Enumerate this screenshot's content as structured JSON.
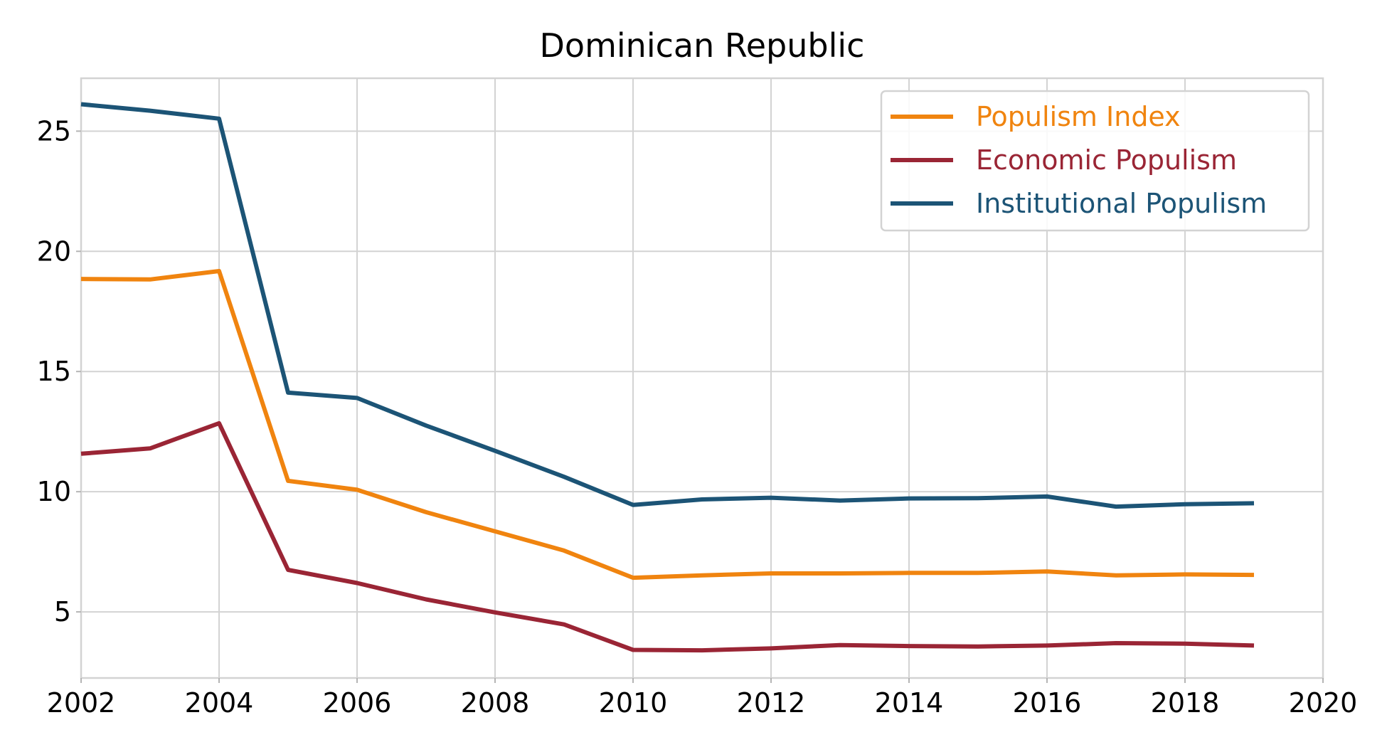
{
  "chart_data": {
    "type": "line",
    "title": "Dominican Republic",
    "xlabel": "",
    "ylabel": "",
    "xlim": [
      2002,
      2020
    ],
    "ylim": [
      2.25,
      27.2
    ],
    "xticks": [
      "2002",
      "2004",
      "2006",
      "2008",
      "2010",
      "2012",
      "2014",
      "2016",
      "2018",
      "2020"
    ],
    "yticks": [
      "5",
      "10",
      "15",
      "20",
      "25"
    ],
    "grid": true,
    "legend_position": "top-right",
    "x": [
      2002,
      2003,
      2004,
      2005,
      2006,
      2007,
      2008,
      2009,
      2010,
      2011,
      2012,
      2013,
      2014,
      2015,
      2016,
      2017,
      2018,
      2019
    ],
    "series": [
      {
        "name": "Populism Index",
        "color": "#f0840f",
        "values": [
          18.85,
          18.83,
          19.18,
          10.45,
          10.08,
          9.15,
          8.35,
          7.55,
          6.42,
          6.52,
          6.6,
          6.6,
          6.62,
          6.62,
          6.68,
          6.52,
          6.56,
          6.54
        ]
      },
      {
        "name": "Economic Populism",
        "color": "#9a2535",
        "values": [
          11.58,
          11.8,
          12.85,
          6.75,
          6.2,
          5.52,
          4.98,
          4.48,
          3.42,
          3.4,
          3.48,
          3.62,
          3.58,
          3.56,
          3.6,
          3.7,
          3.68,
          3.6
        ]
      },
      {
        "name": "Institutional Populism",
        "color": "#1c5476",
        "values": [
          26.12,
          25.85,
          25.52,
          14.12,
          13.9,
          12.75,
          11.7,
          10.62,
          9.45,
          9.68,
          9.75,
          9.63,
          9.72,
          9.73,
          9.8,
          9.38,
          9.48,
          9.52
        ]
      }
    ]
  }
}
